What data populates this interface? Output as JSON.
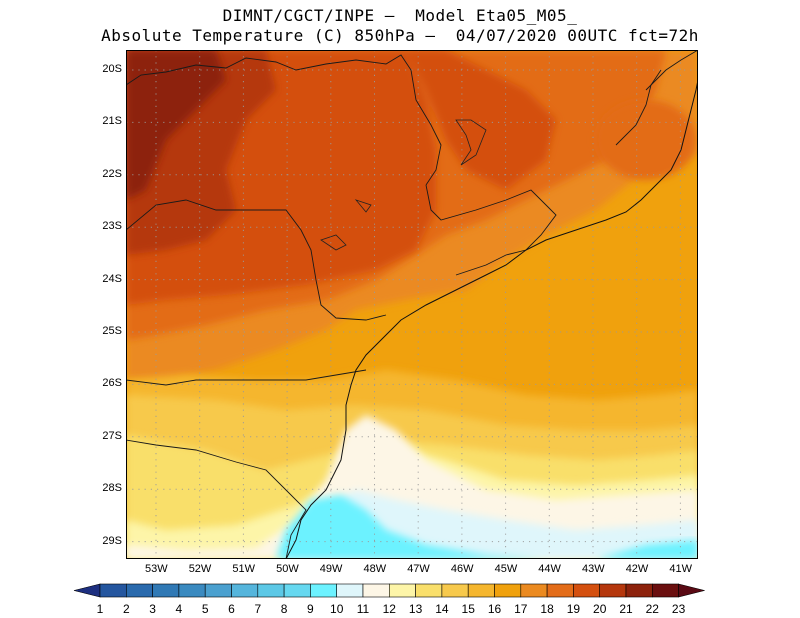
{
  "title": {
    "line1": "DIMNT/CGCT/INPE –  Model Eta05_M05_",
    "line2": "Absolute Temperature (C) 850hPa –  04/07/2020 00UTC fct=72h"
  },
  "map": {
    "lat_labels": [
      "20S",
      "21S",
      "22S",
      "23S",
      "24S",
      "25S",
      "26S",
      "27S",
      "28S",
      "29S"
    ],
    "lon_labels": [
      "53W",
      "52W",
      "51W",
      "50W",
      "49W",
      "48W",
      "47W",
      "46W",
      "45W",
      "44W",
      "43W",
      "42W",
      "41W"
    ],
    "lat_range": [
      -19.7,
      -29.4
    ],
    "lon_range": [
      -53.8,
      -40.5
    ],
    "grid": "dotted"
  },
  "colorbar": {
    "labels": [
      "1",
      "2",
      "3",
      "4",
      "5",
      "6",
      "7",
      "8",
      "9",
      "10",
      "11",
      "12",
      "13",
      "14",
      "15",
      "16",
      "17",
      "18",
      "19",
      "20",
      "21",
      "22",
      "23"
    ],
    "colors": [
      "#1f3f8f",
      "#24569f",
      "#2a6aad",
      "#3079b5",
      "#3a8ac0",
      "#4aa0cf",
      "#55b5dc",
      "#5cc8e6",
      "#66d8f0",
      "#6cf2ff",
      "#dff6fb",
      "#fdf6e6",
      "#fdf5a8",
      "#f9df6b",
      "#f7c94c",
      "#f5b62e",
      "#f0a10d",
      "#eb8a20",
      "#e36c19",
      "#d4500f",
      "#b5370d",
      "#8d220c",
      "#6b0f0f"
    ],
    "extend_low_color": "#1d2f80",
    "extend_high_color": "#5a0a14"
  }
}
